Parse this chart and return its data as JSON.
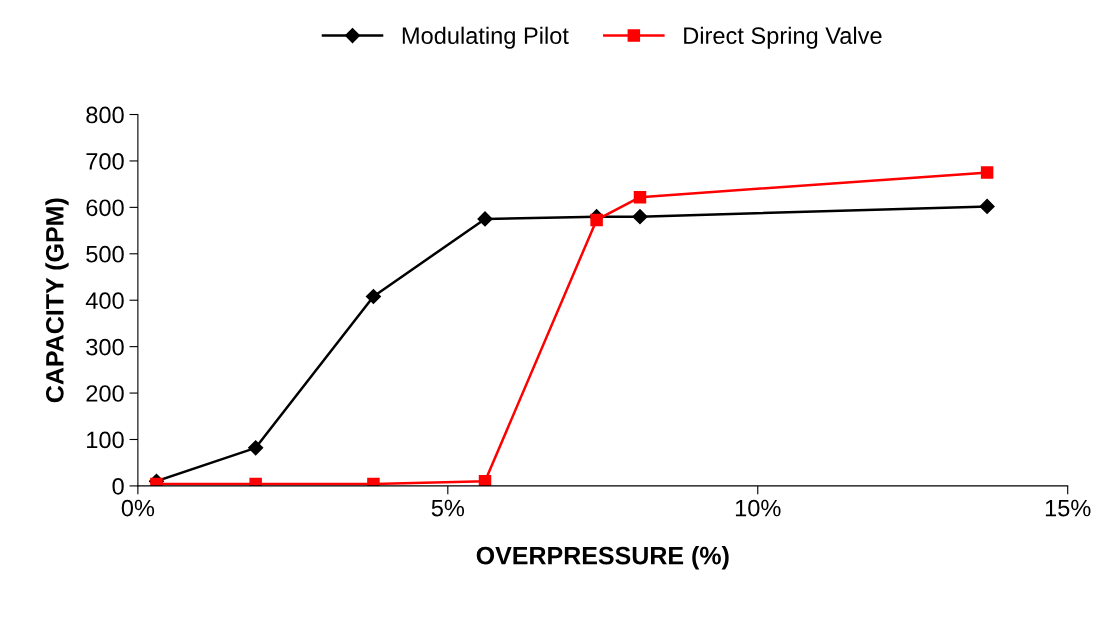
{
  "chart_data": {
    "type": "line",
    "xlabel": "OVERPRESSURE (%)",
    "ylabel": "CAPACITY (GPM)",
    "xlim": [
      0,
      15
    ],
    "ylim": [
      0,
      800
    ],
    "xticks": [
      {
        "value": 0,
        "label": "0%"
      },
      {
        "value": 5,
        "label": "5%"
      },
      {
        "value": 10,
        "label": "10%"
      },
      {
        "value": 15,
        "label": "15%"
      }
    ],
    "yticks": [
      0,
      100,
      200,
      300,
      400,
      500,
      600,
      700,
      800
    ],
    "grid": false,
    "legend": "top",
    "series": [
      {
        "name": "Modulating Pilot",
        "color": "#000000",
        "marker": "diamond",
        "x": [
          0.3,
          1.9,
          3.8,
          5.6,
          7.4,
          8.1,
          13.7
        ],
        "values": [
          10,
          82,
          408,
          575,
          580,
          580,
          602
        ]
      },
      {
        "name": "Direct Spring Valve",
        "color": "#ff0000",
        "marker": "square",
        "x": [
          0.3,
          1.9,
          3.8,
          5.6,
          7.4,
          8.1,
          13.7
        ],
        "values": [
          4,
          4,
          4,
          10,
          573,
          622,
          675
        ]
      }
    ]
  }
}
